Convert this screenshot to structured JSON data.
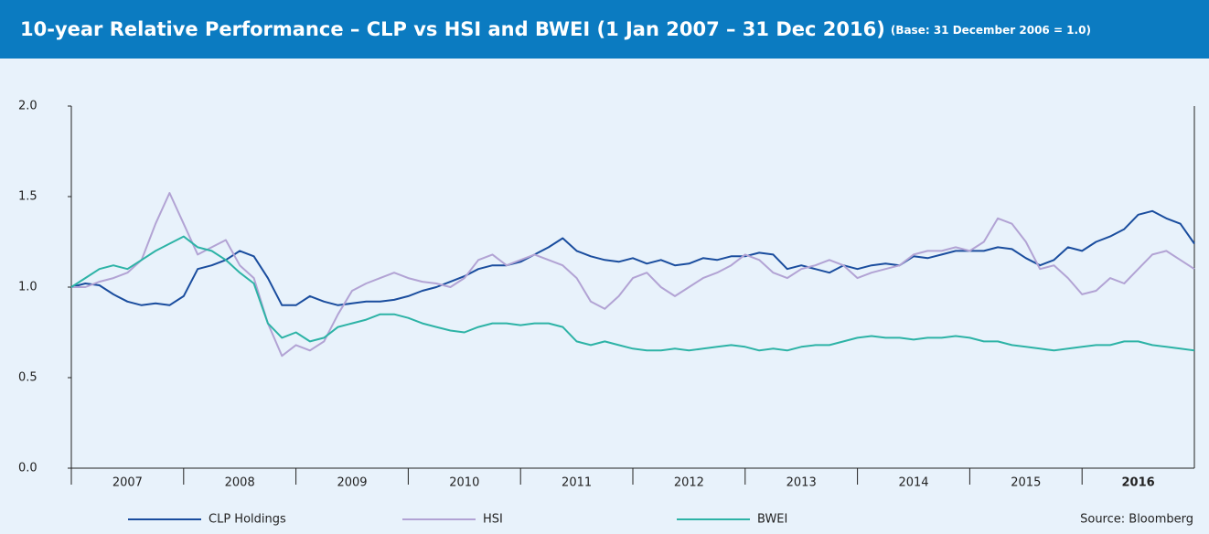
{
  "chart_data": {
    "type": "line",
    "title": "10-year Relative Performance – CLP vs HSI and BWEI (1 Jan 2007 – 31 Dec 2016)",
    "subtitle": "(Base: 31 December 2006 = 1.0)",
    "source": "Source: Bloomberg",
    "x": [
      2007,
      2007.125,
      2007.25,
      2007.375,
      2007.5,
      2007.625,
      2007.75,
      2007.875,
      2008,
      2008.125,
      2008.25,
      2008.375,
      2008.5,
      2008.625,
      2008.75,
      2008.875,
      2009,
      2009.125,
      2009.25,
      2009.375,
      2009.5,
      2009.625,
      2009.75,
      2009.875,
      2010,
      2010.125,
      2010.25,
      2010.375,
      2010.5,
      2010.625,
      2010.75,
      2010.875,
      2011,
      2011.125,
      2011.25,
      2011.375,
      2011.5,
      2011.625,
      2011.75,
      2011.875,
      2012,
      2012.125,
      2012.25,
      2012.375,
      2012.5,
      2012.625,
      2012.75,
      2012.875,
      2013,
      2013.125,
      2013.25,
      2013.375,
      2013.5,
      2013.625,
      2013.75,
      2013.875,
      2014,
      2014.125,
      2014.25,
      2014.375,
      2014.5,
      2014.625,
      2014.75,
      2014.875,
      2015,
      2015.125,
      2015.25,
      2015.375,
      2015.5,
      2015.625,
      2015.75,
      2015.875,
      2016,
      2016.125,
      2016.25,
      2016.375,
      2016.5,
      2016.625,
      2016.75,
      2016.875,
      2017
    ],
    "series": [
      {
        "name": "CLP Holdings",
        "color": "#1a4d9e",
        "values": [
          1.0,
          1.02,
          1.01,
          0.96,
          0.92,
          0.9,
          0.91,
          0.9,
          0.95,
          1.1,
          1.12,
          1.15,
          1.2,
          1.17,
          1.05,
          0.9,
          0.9,
          0.95,
          0.92,
          0.9,
          0.91,
          0.92,
          0.92,
          0.93,
          0.95,
          0.98,
          1.0,
          1.03,
          1.06,
          1.1,
          1.12,
          1.12,
          1.14,
          1.18,
          1.22,
          1.27,
          1.2,
          1.17,
          1.15,
          1.14,
          1.16,
          1.13,
          1.15,
          1.12,
          1.13,
          1.16,
          1.15,
          1.17,
          1.17,
          1.19,
          1.18,
          1.1,
          1.12,
          1.1,
          1.08,
          1.12,
          1.1,
          1.12,
          1.13,
          1.12,
          1.17,
          1.16,
          1.18,
          1.2,
          1.2,
          1.2,
          1.22,
          1.21,
          1.16,
          1.12,
          1.15,
          1.22,
          1.2,
          1.25,
          1.28,
          1.32,
          1.4,
          1.42,
          1.38,
          1.35,
          1.24
        ]
      },
      {
        "name": "HSI",
        "color": "#b2a3d4",
        "values": [
          1.0,
          1.0,
          1.03,
          1.05,
          1.08,
          1.15,
          1.35,
          1.52,
          1.35,
          1.18,
          1.22,
          1.26,
          1.12,
          1.05,
          0.8,
          0.62,
          0.68,
          0.65,
          0.7,
          0.85,
          0.98,
          1.02,
          1.05,
          1.08,
          1.05,
          1.03,
          1.02,
          1.0,
          1.05,
          1.15,
          1.18,
          1.12,
          1.15,
          1.18,
          1.15,
          1.12,
          1.05,
          0.92,
          0.88,
          0.95,
          1.05,
          1.08,
          1.0,
          0.95,
          1.0,
          1.05,
          1.08,
          1.12,
          1.18,
          1.15,
          1.08,
          1.05,
          1.1,
          1.12,
          1.15,
          1.12,
          1.05,
          1.08,
          1.1,
          1.12,
          1.18,
          1.2,
          1.2,
          1.22,
          1.2,
          1.25,
          1.38,
          1.35,
          1.25,
          1.1,
          1.12,
          1.05,
          0.96,
          0.98,
          1.05,
          1.02,
          1.1,
          1.18,
          1.2,
          1.15,
          1.1
        ]
      },
      {
        "name": "BWEI",
        "color": "#2db3a6",
        "values": [
          1.0,
          1.05,
          1.1,
          1.12,
          1.1,
          1.15,
          1.2,
          1.24,
          1.28,
          1.22,
          1.2,
          1.15,
          1.08,
          1.02,
          0.8,
          0.72,
          0.75,
          0.7,
          0.72,
          0.78,
          0.8,
          0.82,
          0.85,
          0.85,
          0.83,
          0.8,
          0.78,
          0.76,
          0.75,
          0.78,
          0.8,
          0.8,
          0.79,
          0.8,
          0.8,
          0.78,
          0.7,
          0.68,
          0.7,
          0.68,
          0.66,
          0.65,
          0.65,
          0.66,
          0.65,
          0.66,
          0.67,
          0.68,
          0.67,
          0.65,
          0.66,
          0.65,
          0.67,
          0.68,
          0.68,
          0.7,
          0.72,
          0.73,
          0.72,
          0.72,
          0.71,
          0.72,
          0.72,
          0.73,
          0.72,
          0.7,
          0.7,
          0.68,
          0.67,
          0.66,
          0.65,
          0.66,
          0.67,
          0.68,
          0.68,
          0.7,
          0.7,
          0.68,
          0.67,
          0.66,
          0.65
        ]
      }
    ],
    "xlim": [
      2007,
      2017
    ],
    "xticks": [
      {
        "value": 2007,
        "label": "2007"
      },
      {
        "value": 2008,
        "label": "2008"
      },
      {
        "value": 2009,
        "label": "2009"
      },
      {
        "value": 2010,
        "label": "2010"
      },
      {
        "value": 2011,
        "label": "2011"
      },
      {
        "value": 2012,
        "label": "2012"
      },
      {
        "value": 2013,
        "label": "2013"
      },
      {
        "value": 2014,
        "label": "2014"
      },
      {
        "value": 2015,
        "label": "2015"
      },
      {
        "value": 2016,
        "label": "2016"
      }
    ],
    "ylim": [
      0,
      2
    ],
    "yticks": [
      {
        "value": 0,
        "label": "0.0"
      },
      {
        "value": 0.5,
        "label": "0.5"
      },
      {
        "value": 1,
        "label": "1.0"
      },
      {
        "value": 1.5,
        "label": "1.5"
      },
      {
        "value": 2,
        "label": "2.0"
      }
    ]
  }
}
